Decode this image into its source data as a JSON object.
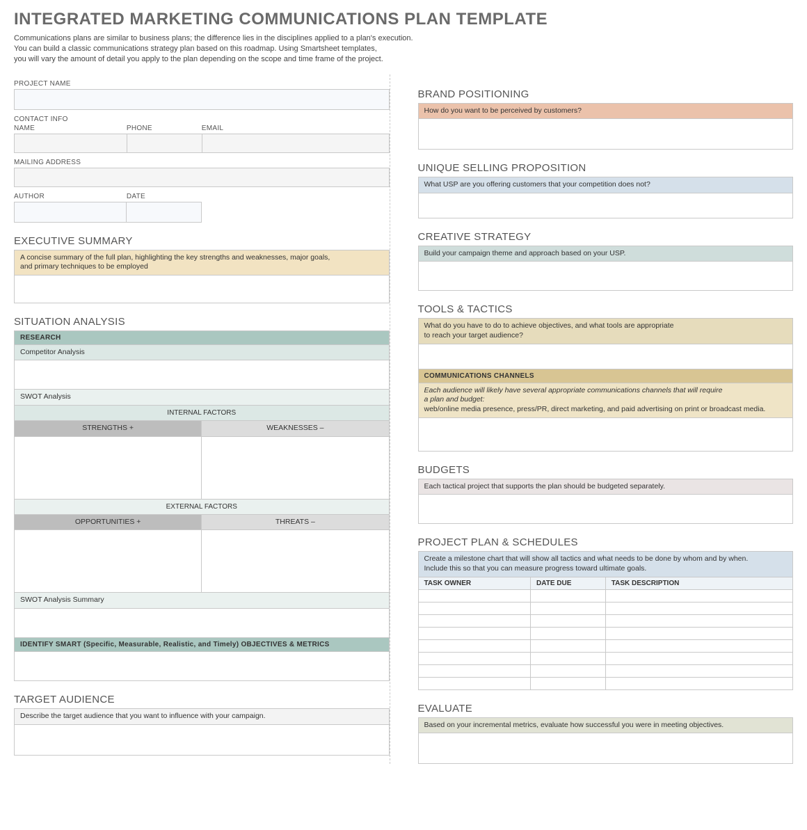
{
  "title": "INTEGRATED MARKETING COMMUNICATIONS PLAN TEMPLATE",
  "intro_line1": "Communications plans are similar to business plans; the difference lies in the disciplines applied to a plan's execution.",
  "intro_line2": "You can build a classic communications strategy plan based on this roadmap. Using Smartsheet templates,",
  "intro_line3": "you will vary the amount of detail you apply to the plan depending on the scope and time frame of the project.",
  "colors": {
    "input_bg": "#f7f9fc",
    "gray_bg": "#f3f3f3",
    "exec_hint_bg": "#f2e3c2",
    "research_bg": "#aac7c0",
    "teal_light": "#dce8e5",
    "teal_lighter": "#eaf1ef",
    "gray_header": "#bdbdbd",
    "gray_header2": "#dcdcdc",
    "brand_hint_bg": "#ebc2ab",
    "usp_hint_bg": "#d5e0ea",
    "creative_hint_bg": "#cfdddb",
    "tools_hint_bg": "#e6dcbc",
    "comm_head_bg": "#d8c593",
    "comm_hint_bg": "#efe4c6",
    "budget_hint_bg": "#eae4e4",
    "plan_hint_bg": "#d5e0ea",
    "plan_th_bg": "#eef3f7",
    "evaluate_hint_bg": "#e1e3d4"
  },
  "left": {
    "project_name_label": "PROJECT NAME",
    "contact_info_label": "CONTACT INFO",
    "name_label": "NAME",
    "phone_label": "PHONE",
    "email_label": "EMAIL",
    "mailing_label": "MAILING ADDRESS",
    "author_label": "AUTHOR",
    "date_label": "DATE",
    "exec_title": "EXECUTIVE SUMMARY",
    "exec_hint1": "A concise summary of the full plan, highlighting the key strengths and weaknesses, major goals,",
    "exec_hint2": "and primary techniques to be employed",
    "sit_title": "SITUATION ANALYSIS",
    "research": "RESEARCH",
    "competitor": "Competitor Analysis",
    "swot": "SWOT Analysis",
    "internal": "INTERNAL FACTORS",
    "strengths": "STRENGTHS   +",
    "weaknesses": "WEAKNESSES   –",
    "external": "EXTERNAL FACTORS",
    "opportunities": "OPPORTUNITIES   +",
    "threats": "THREATS   –",
    "swot_summary": "SWOT Analysis Summary",
    "smart": "IDENTIFY SMART (Specific, Measurable, Realistic, and Timely) OBJECTIVES & METRICS",
    "target_title": "TARGET AUDIENCE",
    "target_hint": "Describe the target audience that you want to influence with your campaign."
  },
  "right": {
    "brand_title": "BRAND POSITIONING",
    "brand_hint": "How do you want to be perceived by customers?",
    "usp_title": "UNIQUE SELLING PROPOSITION",
    "usp_hint": "What USP are you offering customers that your competition does not?",
    "creative_title": "CREATIVE STRATEGY",
    "creative_hint": "Build your campaign theme and approach based on your USP.",
    "tools_title": "TOOLS & TACTICS",
    "tools_hint1": "What do you have to do to achieve objectives, and what tools are appropriate",
    "tools_hint2": "to reach your target audience?",
    "comm_head": "COMMUNICATIONS CHANNELS",
    "comm_hint1": "Each audience will likely have several appropriate communications channels that will require",
    "comm_hint2": "a plan and budget:",
    "comm_hint3": "web/online media presence, press/PR, direct marketing, and paid advertising on print or broadcast media.",
    "budgets_title": "BUDGETS",
    "budgets_hint": "Each tactical project that supports the plan should be budgeted separately.",
    "plan_title": "PROJECT PLAN & SCHEDULES",
    "plan_hint1": "Create a milestone chart that will show all tactics and what needs to be done by whom and by when.",
    "plan_hint2": "Include this so that you can measure progress toward ultimate goals.",
    "plan_cols": {
      "owner": "TASK OWNER",
      "due": "DATE DUE",
      "desc": "TASK DESCRIPTION"
    },
    "plan_row_count": 8,
    "evaluate_title": "EVALUATE",
    "evaluate_hint": "Based on your incremental metrics, evaluate how successful you were in meeting objectives."
  }
}
